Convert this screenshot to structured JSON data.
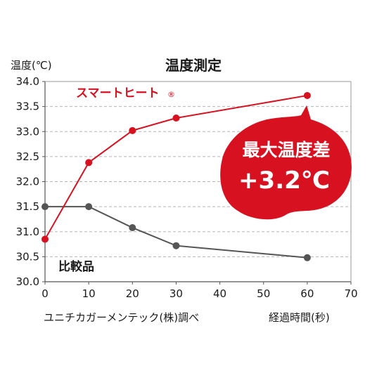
{
  "chart_data": {
    "type": "line",
    "title": "温度測定",
    "ylabel": "温度(℃)",
    "xlabel": "経過時間(秒)",
    "source_note": "ユニチカガーメンテック(株)調べ",
    "x": [
      0,
      10,
      20,
      30,
      60
    ],
    "xticks": [
      "0",
      "10",
      "20",
      "30",
      "40",
      "50",
      "60",
      "70"
    ],
    "yticks": [
      "30.0",
      "30.5",
      "31.0",
      "31.5",
      "32.0",
      "32.5",
      "33.0",
      "33.5",
      "34.0"
    ],
    "xlim": [
      0,
      70
    ],
    "ylim": [
      30.0,
      34.0
    ],
    "grid": "horizontal dashed",
    "series": [
      {
        "name": "スマートヒート",
        "mark": "®",
        "color": "#d7111f",
        "values": [
          30.85,
          32.38,
          33.02,
          33.27,
          33.72
        ]
      },
      {
        "name": "比較品",
        "color": "#555555",
        "values": [
          31.5,
          31.5,
          31.08,
          30.72,
          30.48
        ]
      }
    ],
    "callout": {
      "line1": "最大温度差",
      "line2": "+3.2℃",
      "color": "#d7111f"
    }
  }
}
